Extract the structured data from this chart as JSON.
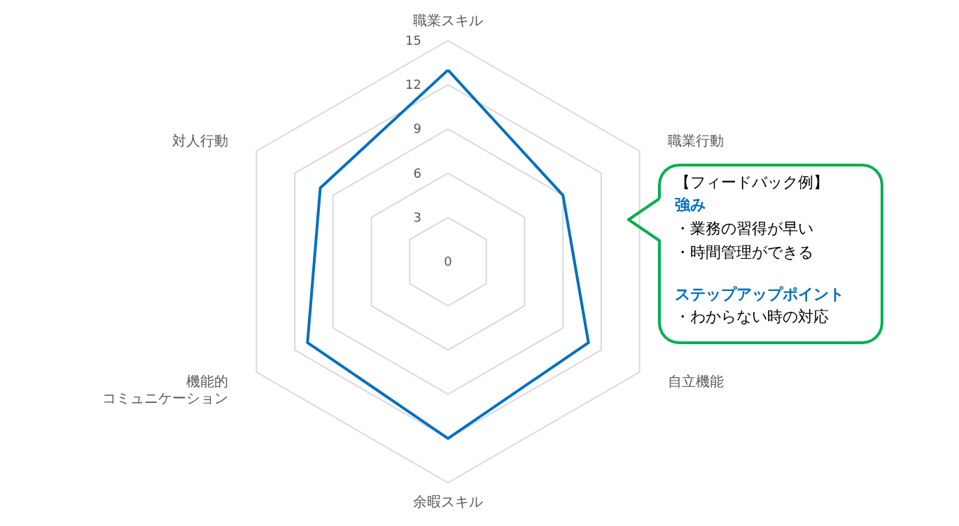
{
  "chart_data": {
    "type": "radar",
    "categories": [
      "職業スキル",
      "職業行動",
      "自立機能",
      "余暇スキル",
      "機能的コミュニケーション",
      "対人行動"
    ],
    "series": [
      {
        "color": "#0070c0",
        "values": [
          13,
          9,
          11,
          12,
          11,
          10
        ]
      }
    ],
    "ylim": [
      0,
      15
    ],
    "yticks": [
      0,
      3,
      6,
      9,
      12,
      15
    ],
    "grid": true,
    "annotations": [
      "【フィードバック例】",
      "強み",
      "・業務の習得が早い",
      "・時間管理ができる",
      "ステップアップポイント",
      "・わからない時の対応"
    ]
  }
}
